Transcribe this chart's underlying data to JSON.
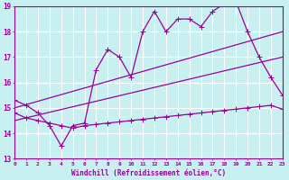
{
  "xlabel": "Windchill (Refroidissement éolien,°C)",
  "bg_color": "#c8f0f0",
  "grid_color": "#ffffff",
  "line_color": "#990099",
  "xmin": 0,
  "xmax": 23,
  "ymin": 13,
  "ymax": 19,
  "series1_x": [
    0,
    1,
    2,
    3,
    4,
    5,
    6,
    7,
    8,
    9,
    10,
    11,
    12,
    13,
    14,
    15,
    16,
    17,
    18,
    19,
    20,
    21,
    22,
    23
  ],
  "series1_y": [
    15.3,
    15.1,
    14.8,
    14.3,
    13.5,
    14.3,
    14.4,
    16.5,
    17.3,
    17.0,
    16.2,
    18.0,
    18.8,
    18.0,
    18.5,
    18.5,
    18.2,
    18.8,
    19.1,
    19.2,
    18.0,
    17.0,
    16.2,
    15.5
  ],
  "series2_x": [
    0,
    23
  ],
  "series2_y": [
    15.0,
    18.0
  ],
  "series3_x": [
    0,
    23
  ],
  "series3_y": [
    14.5,
    17.0
  ],
  "series4_x": [
    0,
    1,
    2,
    3,
    4,
    5,
    6,
    7,
    8,
    9,
    10,
    11,
    12,
    13,
    14,
    15,
    16,
    17,
    18,
    19,
    20,
    21,
    22,
    23
  ],
  "series4_y": [
    14.8,
    14.6,
    14.5,
    14.4,
    14.3,
    14.2,
    14.3,
    14.35,
    14.4,
    14.45,
    14.5,
    14.55,
    14.6,
    14.65,
    14.7,
    14.75,
    14.8,
    14.85,
    14.9,
    14.95,
    15.0,
    15.05,
    15.1,
    14.95
  ],
  "xtick_labels": [
    "0",
    "1",
    "2",
    "3",
    "4",
    "5",
    "6",
    "7",
    "8",
    "9",
    "10",
    "11",
    "12",
    "13",
    "14",
    "15",
    "16",
    "17",
    "18",
    "19",
    "20",
    "21",
    "22",
    "23"
  ],
  "ytick_labels": [
    "13",
    "14",
    "15",
    "16",
    "17",
    "18",
    "19"
  ]
}
